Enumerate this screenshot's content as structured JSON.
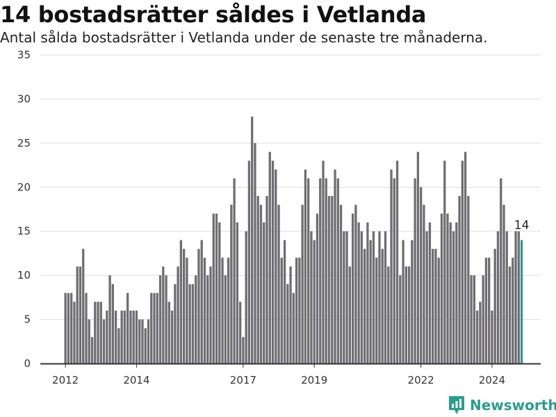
{
  "header": {
    "title": "14 bostadsrätter såldes i Vetlanda",
    "subtitle": "Antal sålda bostadsrätter i Vetlanda under de senaste tre månaderna."
  },
  "brand": {
    "name": "Newsworthy",
    "icon": "newsworthy-logo-icon",
    "color": "#2a9d8f"
  },
  "chart_data": {
    "type": "bar",
    "title": "14 bostadsrätter såldes i Vetlanda",
    "subtitle": "Antal sålda bostadsrätter i Vetlanda under de senaste tre månaderna.",
    "xlabel": "",
    "ylabel": "",
    "ylim": [
      0,
      35
    ],
    "yticks": [
      0,
      5,
      10,
      15,
      20,
      25,
      30,
      35
    ],
    "xticks": [
      "2012",
      "2014",
      "2017",
      "2019",
      "2022",
      "2024"
    ],
    "grid": true,
    "legend": "none",
    "bar_color": "#6e6d72",
    "highlight_color": "#2a9d8f",
    "last_value_label": "14",
    "start_period": "2012-01",
    "frequency": "monthly",
    "values": [
      8,
      8,
      8,
      7,
      11,
      11,
      13,
      8,
      5,
      3,
      7,
      7,
      7,
      5,
      6,
      10,
      9,
      6,
      4,
      6,
      6,
      8,
      6,
      6,
      6,
      5,
      5,
      4,
      5,
      8,
      8,
      8,
      10,
      11,
      10,
      7,
      6,
      9,
      11,
      14,
      13,
      12,
      9,
      9,
      10,
      13,
      14,
      12,
      10,
      11,
      17,
      17,
      16,
      12,
      10,
      12,
      18,
      21,
      16,
      7,
      3,
      15,
      23,
      28,
      25,
      19,
      18,
      16,
      19,
      24,
      23,
      22,
      18,
      12,
      14,
      9,
      11,
      8,
      12,
      12,
      18,
      22,
      21,
      15,
      14,
      17,
      21,
      23,
      21,
      19,
      19,
      22,
      21,
      18,
      15,
      15,
      11,
      17,
      18,
      16,
      15,
      13,
      16,
      14,
      15,
      12,
      15,
      13,
      15,
      11,
      22,
      21,
      23,
      10,
      14,
      11,
      11,
      14,
      21,
      24,
      20,
      18,
      15,
      16,
      13,
      13,
      12,
      17,
      23,
      17,
      16,
      15,
      16,
      19,
      23,
      24,
      19,
      10,
      10,
      6,
      7,
      10,
      12,
      12,
      6,
      13,
      15,
      21,
      18,
      15,
      11,
      12,
      15,
      15,
      14
    ]
  }
}
